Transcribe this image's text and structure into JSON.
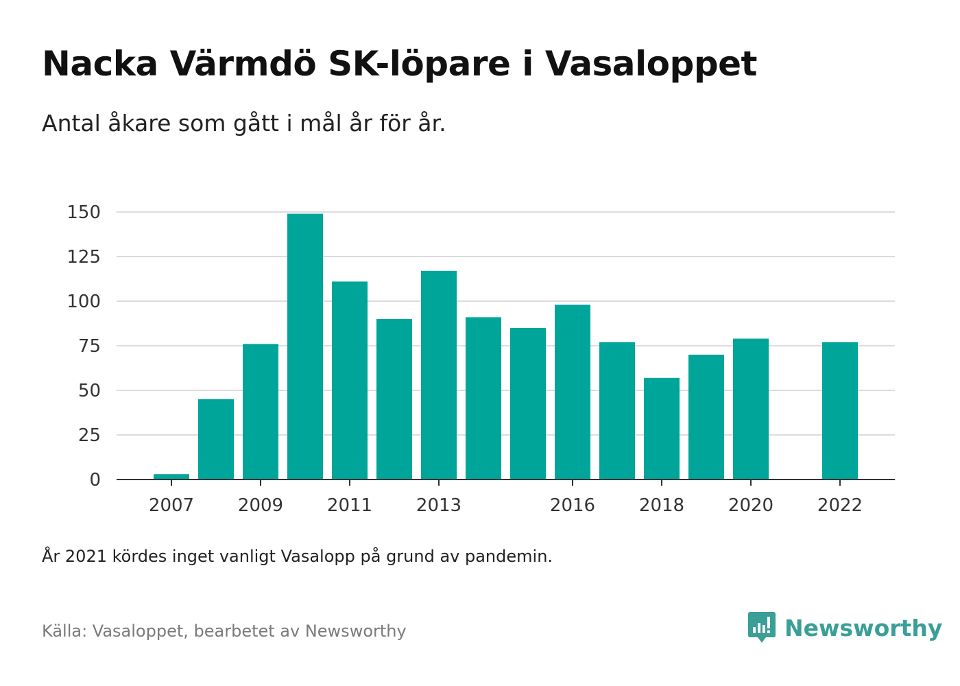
{
  "header": {
    "title": "Nacka Värmdö SK-löpare i Vasaloppet",
    "subtitle": "Antal åkare som gått i mål år för år."
  },
  "footer": {
    "note": "År 2021 kördes inget vanligt Vasalopp på grund av pandemin.",
    "source": "Källa: Vasaloppet, bearbetet av Newsworthy",
    "logo_text": "Newsworthy"
  },
  "colors": {
    "bar": "#00a59a",
    "grid": "#dcdcdc",
    "axis": "#333333",
    "logo": "#3a9f96"
  },
  "chart_data": {
    "type": "bar",
    "title": "Nacka Värmdö SK-löpare i Vasaloppet",
    "subtitle": "Antal åkare som gått i mål år för år.",
    "xlabel": "",
    "ylabel": "",
    "categories": [
      "2007",
      "2008",
      "2009",
      "2010",
      "2011",
      "2012",
      "2013",
      "2014",
      "2015",
      "2016",
      "2017",
      "2018",
      "2019",
      "2020",
      "2021",
      "2022"
    ],
    "values": [
      3,
      45,
      76,
      149,
      111,
      90,
      117,
      91,
      85,
      98,
      77,
      57,
      70,
      79,
      null,
      77
    ],
    "x_tick_labels": [
      "2007",
      "2009",
      "2011",
      "2013",
      "2016",
      "2018",
      "2020",
      "2022"
    ],
    "y_ticks": [
      "0",
      "25",
      "50",
      "75",
      "100",
      "125",
      "150"
    ],
    "ylim": [
      0,
      150
    ],
    "grid": true,
    "legend": "none"
  }
}
